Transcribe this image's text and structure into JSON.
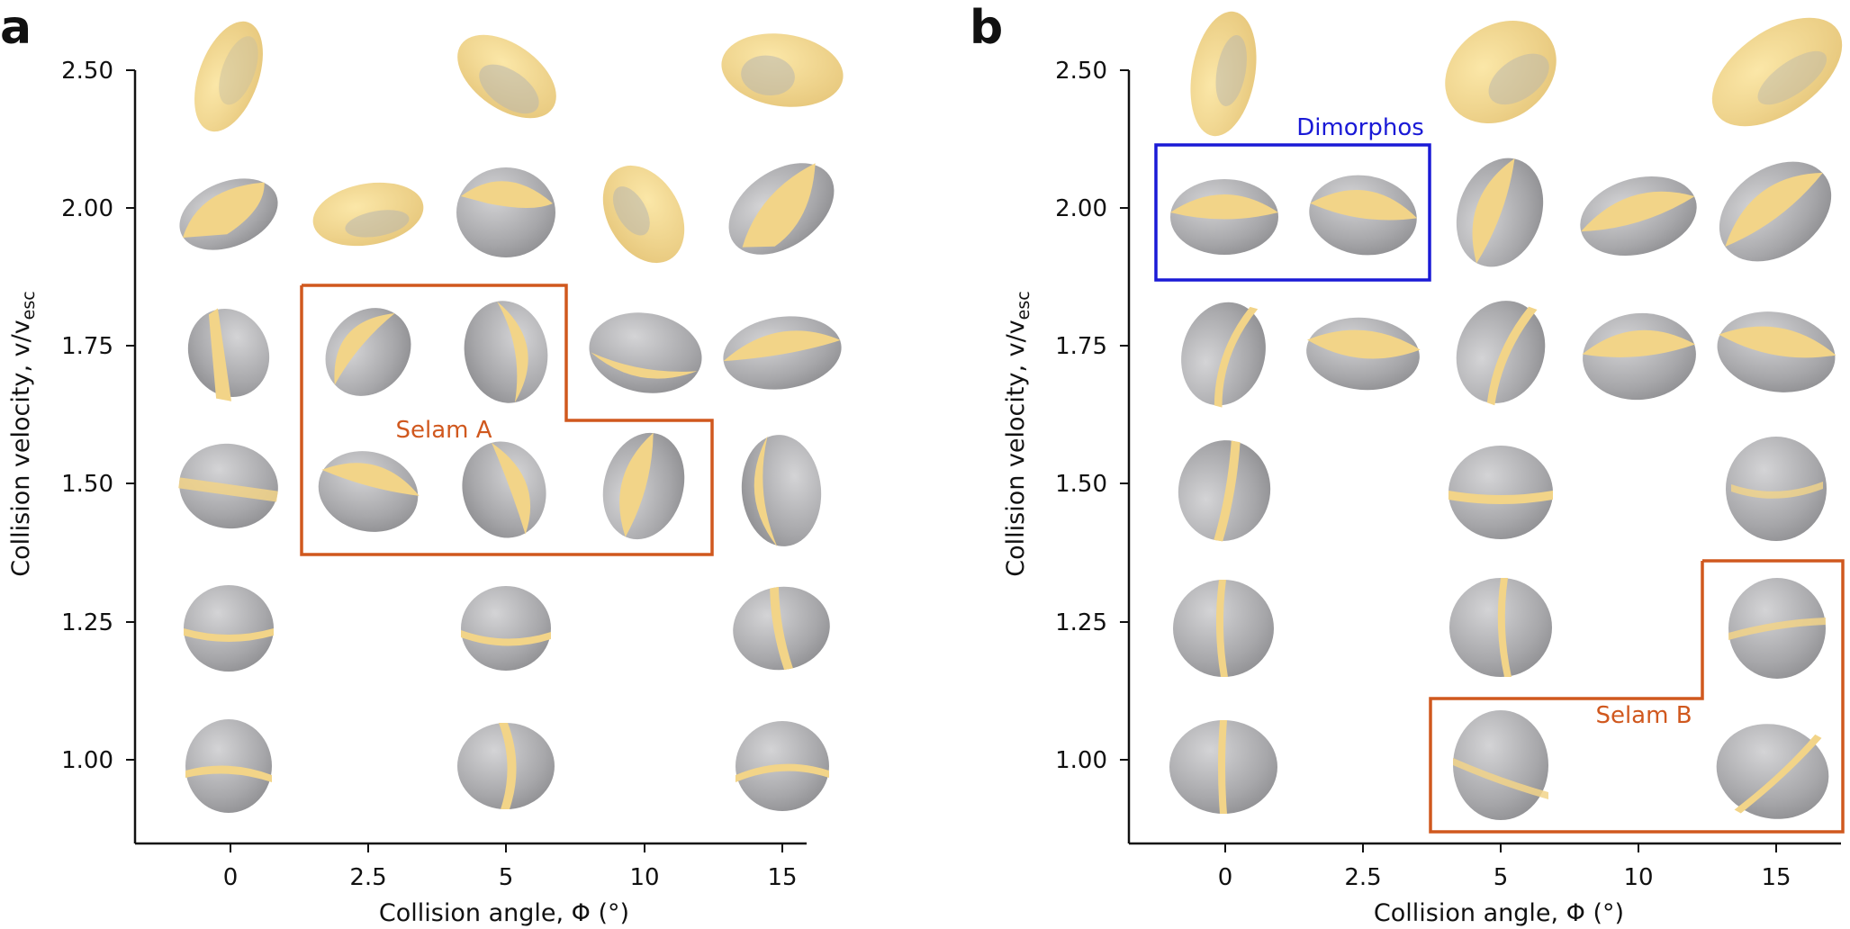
{
  "panels": [
    {
      "letter": "a",
      "xlabel": "Collision angle, Φ (°)",
      "ylabel": "Collision velocity, v/v",
      "ylabel_sub": "esc",
      "x_ticks": [
        "0",
        "2.5",
        "5",
        "10",
        "15"
      ],
      "y_ticks": [
        "1.00",
        "1.25",
        "1.50",
        "1.75",
        "2.00",
        "2.50"
      ],
      "grid": [
        [
          "yes",
          "no",
          "yes",
          "no",
          "yes"
        ],
        [
          "yes",
          "no",
          "yes",
          "no",
          "yes"
        ],
        [
          "yes",
          "yes",
          "yes",
          "yes",
          "yes"
        ],
        [
          "yes",
          "yes",
          "yes",
          "yes",
          "yes"
        ],
        [
          "yes",
          "yes",
          "yes",
          "yes",
          "yes"
        ],
        [
          "yes",
          "no",
          "yes",
          "no",
          "yes"
        ]
      ],
      "annotation": {
        "label": "Selam A",
        "color": "#d0581e"
      }
    },
    {
      "letter": "b",
      "xlabel": "Collision angle, Φ (°)",
      "ylabel": "Collision velocity, v/v",
      "ylabel_sub": "esc",
      "x_ticks": [
        "0",
        "2.5",
        "5",
        "10",
        "15"
      ],
      "y_ticks": [
        "1.00",
        "1.25",
        "1.50",
        "1.75",
        "2.00",
        "2.50"
      ],
      "grid": [
        [
          "yes",
          "no",
          "yes",
          "no",
          "yes"
        ],
        [
          "yes",
          "no",
          "yes",
          "no",
          "yes"
        ],
        [
          "yes",
          "no",
          "yes",
          "no",
          "yes"
        ],
        [
          "yes",
          "yes",
          "yes",
          "yes",
          "yes"
        ],
        [
          "yes",
          "yes",
          "yes",
          "yes",
          "yes"
        ],
        [
          "yes",
          "no",
          "yes",
          "no",
          "yes"
        ]
      ],
      "annotations": [
        {
          "label": "Dimorphos",
          "color": "#1a1ad6"
        },
        {
          "label": "Selam B",
          "color": "#d0581e"
        }
      ]
    }
  ],
  "colors": {
    "body": "#a9a9ab",
    "ejecta": "#f2d488",
    "axis": "#111111"
  }
}
